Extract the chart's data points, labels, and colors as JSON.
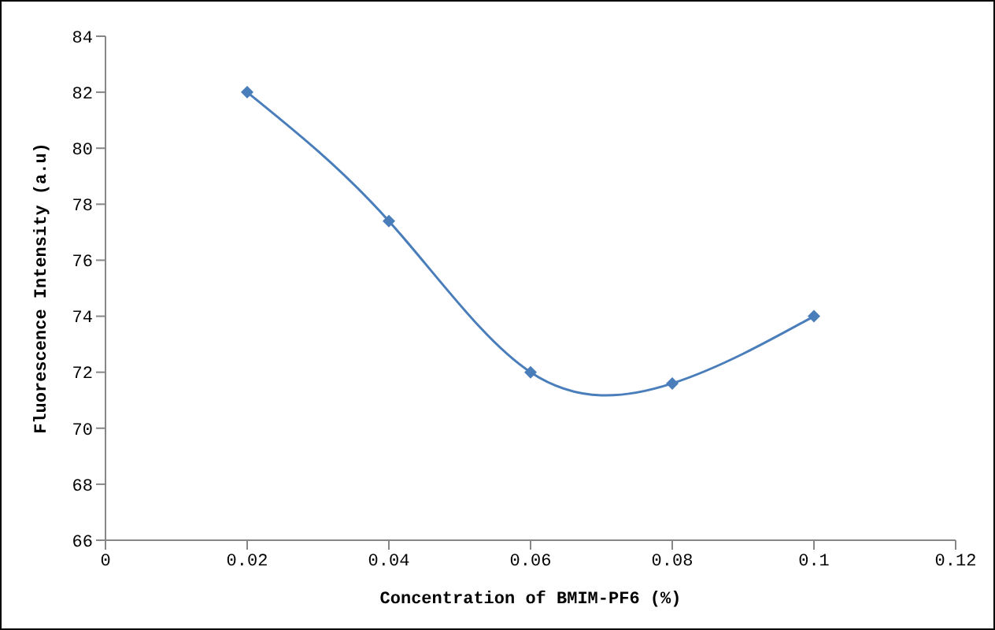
{
  "chart_data": {
    "type": "line",
    "xlabel": "Concentration of BMIM-PF6   (%)",
    "ylabel": "Fluorescence Intensity (a.u)",
    "x": [
      0.02,
      0.04,
      0.06,
      0.08,
      0.1
    ],
    "series": [
      {
        "color": "#4a7ebb",
        "values": [
          82,
          77.4,
          72,
          71.6,
          74
        ]
      }
    ],
    "xlim": [
      0,
      0.12
    ],
    "xticks": [
      0,
      0.02,
      0.04,
      0.06,
      0.08,
      0.1,
      0.12
    ],
    "ylim": [
      66,
      84
    ],
    "yticks": [
      66,
      68,
      70,
      72,
      74,
      76,
      78,
      80,
      82,
      84
    ],
    "grid": false,
    "legend": false,
    "marker": "diamond",
    "line_style": "solid"
  }
}
